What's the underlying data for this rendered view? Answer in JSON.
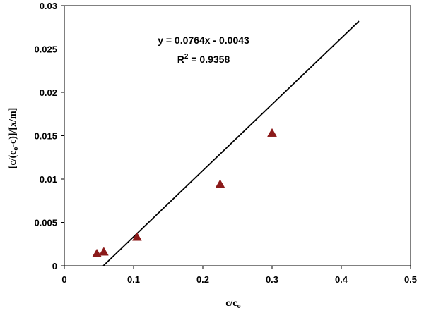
{
  "chart_data": {
    "type": "scatter",
    "title": "",
    "xlabel": {
      "main": "c/c",
      "sub": "o"
    },
    "ylabel": {
      "p1": "[c/(c",
      "sub": "o",
      "p2": "-c)]/[x/m]"
    },
    "xlim": [
      0,
      0.5
    ],
    "ylim": [
      0,
      0.03
    ],
    "x_ticks": [
      "0",
      "0.1",
      "0.2",
      "0.3",
      "0.4",
      "0.5"
    ],
    "y_ticks": [
      "0",
      "0.005",
      "0.01",
      "0.015",
      "0.02",
      "0.025",
      "0.03"
    ],
    "grid": false,
    "series": [
      {
        "marker": "triangle",
        "color": "#8b1a1a",
        "points": [
          {
            "x": 0.047,
            "y": 0.0014
          },
          {
            "x": 0.057,
            "y": 0.0016
          },
          {
            "x": 0.105,
            "y": 0.0033
          },
          {
            "x": 0.225,
            "y": 0.0094
          },
          {
            "x": 0.3,
            "y": 0.0153
          }
        ]
      }
    ],
    "trendline": {
      "slope": 0.0764,
      "intercept": -0.0043,
      "x_range": [
        0.0563,
        0.4255
      ],
      "color": "#000000"
    },
    "annotation": {
      "equation": "y = 0.0764x - 0.0043",
      "r2_prefix": "R",
      "r2_sup": "2",
      "r2_value": " = 0.9358"
    }
  }
}
